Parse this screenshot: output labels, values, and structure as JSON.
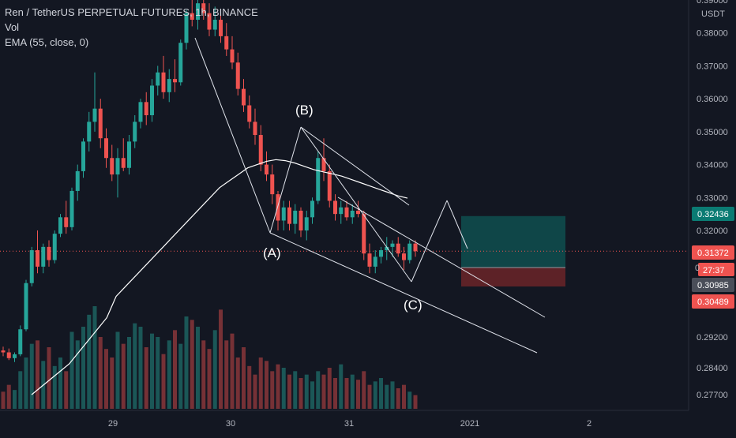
{
  "header": {
    "symbol_line": "Ren / TetherUS PERPETUAL FUTURES, 1h, BINANCE",
    "vol_label": "Vol",
    "ema_label": "EMA (55, close, 0)"
  },
  "price_axis": {
    "currency": "USDT",
    "ticks": [
      "0.39000",
      "0.38000",
      "0.37000",
      "0.36000",
      "0.35000",
      "0.34000",
      "0.33000",
      "0.32000",
      "0.29200",
      "0.28400",
      "0.27700"
    ],
    "tick_values": [
      0.39,
      0.38,
      0.37,
      0.36,
      0.35,
      0.34,
      0.33,
      0.32,
      0.292,
      0.284,
      0.277
    ]
  },
  "time_axis": {
    "labels": [
      "29",
      "30",
      "31",
      "2021",
      "2"
    ]
  },
  "badges": {
    "target": "0.32436",
    "current": "0.31372",
    "countdown": "27:37",
    "small_zero": "0",
    "entry": "0.30985",
    "stop": "0.30489"
  },
  "annotations": [
    "(A)",
    "(B)",
    "(C)"
  ],
  "colors": {
    "background": "#131722",
    "up": "#26a69a",
    "down": "#ef5350",
    "ema": "#ffffff",
    "target_zone": "#0f4f4f",
    "stop_zone": "#6b2528"
  },
  "chart_data": {
    "type": "candlestick",
    "title": "Ren / TetherUS PERPETUAL FUTURES, 1h, BINANCE",
    "ylabel": "USDT",
    "ylim": [
      0.27,
      0.39
    ],
    "series": [
      {
        "name": "Ren / TetherUS PERPETUAL FUTURES",
        "ohlc": [
          [
            0.2885,
            0.2895,
            0.287,
            0.288
          ],
          [
            0.288,
            0.289,
            0.286,
            0.2865
          ],
          [
            0.2865,
            0.288,
            0.2855,
            0.2875
          ],
          [
            0.2875,
            0.295,
            0.287,
            0.294
          ],
          [
            0.294,
            0.305,
            0.2935,
            0.304
          ],
          [
            0.304,
            0.315,
            0.303,
            0.314
          ],
          [
            0.314,
            0.32,
            0.307,
            0.309
          ],
          [
            0.309,
            0.316,
            0.307,
            0.315
          ],
          [
            0.315,
            0.317,
            0.309,
            0.311
          ],
          [
            0.311,
            0.32,
            0.31,
            0.319
          ],
          [
            0.319,
            0.325,
            0.318,
            0.324
          ],
          [
            0.324,
            0.329,
            0.319,
            0.321
          ],
          [
            0.321,
            0.333,
            0.32,
            0.332
          ],
          [
            0.332,
            0.34,
            0.329,
            0.338
          ],
          [
            0.338,
            0.348,
            0.336,
            0.347
          ],
          [
            0.347,
            0.356,
            0.344,
            0.353
          ],
          [
            0.353,
            0.368,
            0.35,
            0.357
          ],
          [
            0.357,
            0.36,
            0.345,
            0.348
          ],
          [
            0.348,
            0.351,
            0.339,
            0.342
          ],
          [
            0.342,
            0.346,
            0.335,
            0.337
          ],
          [
            0.337,
            0.345,
            0.33,
            0.342
          ],
          [
            0.342,
            0.348,
            0.338,
            0.339
          ],
          [
            0.339,
            0.349,
            0.337,
            0.347
          ],
          [
            0.347,
            0.355,
            0.345,
            0.353
          ],
          [
            0.353,
            0.36,
            0.351,
            0.359
          ],
          [
            0.359,
            0.362,
            0.352,
            0.355
          ],
          [
            0.355,
            0.366,
            0.353,
            0.364
          ],
          [
            0.364,
            0.37,
            0.361,
            0.368
          ],
          [
            0.368,
            0.373,
            0.36,
            0.362
          ],
          [
            0.362,
            0.369,
            0.359,
            0.366
          ],
          [
            0.366,
            0.372,
            0.362,
            0.365
          ],
          [
            0.365,
            0.378,
            0.364,
            0.377
          ],
          [
            0.377,
            0.387,
            0.375,
            0.386
          ],
          [
            0.386,
            0.39,
            0.382,
            0.384
          ],
          [
            0.384,
            0.39,
            0.381,
            0.389
          ],
          [
            0.389,
            0.39,
            0.384,
            0.386
          ],
          [
            0.386,
            0.389,
            0.379,
            0.381
          ],
          [
            0.381,
            0.388,
            0.379,
            0.384
          ],
          [
            0.384,
            0.387,
            0.377,
            0.379
          ],
          [
            0.379,
            0.383,
            0.373,
            0.375
          ],
          [
            0.375,
            0.379,
            0.369,
            0.371
          ],
          [
            0.371,
            0.374,
            0.361,
            0.363
          ],
          [
            0.363,
            0.366,
            0.356,
            0.358
          ],
          [
            0.358,
            0.361,
            0.351,
            0.353
          ],
          [
            0.353,
            0.357,
            0.346,
            0.349
          ],
          [
            0.349,
            0.352,
            0.338,
            0.34
          ],
          [
            0.34,
            0.344,
            0.335,
            0.337
          ],
          [
            0.337,
            0.34,
            0.328,
            0.331
          ],
          [
            0.331,
            0.332,
            0.32,
            0.323
          ],
          [
            0.323,
            0.329,
            0.32,
            0.327
          ],
          [
            0.327,
            0.329,
            0.32,
            0.322
          ],
          [
            0.322,
            0.328,
            0.319,
            0.326
          ],
          [
            0.326,
            0.327,
            0.318,
            0.32
          ],
          [
            0.32,
            0.326,
            0.317,
            0.324
          ],
          [
            0.324,
            0.33,
            0.322,
            0.329
          ],
          [
            0.329,
            0.344,
            0.328,
            0.342
          ],
          [
            0.342,
            0.348,
            0.335,
            0.338
          ],
          [
            0.338,
            0.34,
            0.327,
            0.329
          ],
          [
            0.329,
            0.331,
            0.323,
            0.325
          ],
          [
            0.325,
            0.329,
            0.322,
            0.327
          ],
          [
            0.327,
            0.329,
            0.323,
            0.324
          ],
          [
            0.324,
            0.328,
            0.322,
            0.326
          ],
          [
            0.326,
            0.329,
            0.324,
            0.325
          ],
          [
            0.325,
            0.326,
            0.311,
            0.313
          ],
          [
            0.313,
            0.316,
            0.307,
            0.309
          ],
          [
            0.309,
            0.314,
            0.307,
            0.312
          ],
          [
            0.312,
            0.315,
            0.31,
            0.314
          ],
          [
            0.314,
            0.318,
            0.311,
            0.315
          ],
          [
            0.315,
            0.317,
            0.312,
            0.316
          ],
          [
            0.316,
            0.318,
            0.312,
            0.313
          ],
          [
            0.313,
            0.315,
            0.308,
            0.311
          ],
          [
            0.311,
            0.317,
            0.31,
            0.316
          ],
          [
            0.316,
            0.317,
            0.312,
            0.3137
          ]
        ]
      },
      {
        "name": "Vol",
        "values": [
          10,
          14,
          11,
          22,
          30,
          38,
          40,
          28,
          36,
          25,
          30,
          22,
          45,
          40,
          48,
          55,
          60,
          42,
          35,
          30,
          45,
          38,
          42,
          50,
          48,
          36,
          44,
          42,
          32,
          40,
          46,
          38,
          54,
          52,
          48,
          40,
          35,
          46,
          58,
          40,
          44,
          30,
          36,
          25,
          20,
          30,
          28,
          22,
          26,
          24,
          20,
          22,
          18,
          20,
          16,
          22,
          20,
          24,
          18,
          26,
          18,
          20,
          17,
          22,
          14,
          16,
          18,
          14,
          16,
          12,
          14,
          10,
          8
        ]
      },
      {
        "name": "EMA (55, close, 0)",
        "values": [
          0.277,
          0.279,
          0.281,
          0.283,
          0.285,
          0.288,
          0.291,
          0.294,
          0.297,
          0.3,
          0.303,
          0.306,
          0.309,
          0.312,
          0.315,
          0.318,
          0.321,
          0.324,
          0.327,
          0.33,
          0.333,
          0.335,
          0.337,
          0.339,
          0.34,
          0.341,
          0.3415,
          0.3412,
          0.3405,
          0.3395,
          0.3385,
          0.3378,
          0.3372,
          0.3365,
          0.3355,
          0.3345,
          0.3335,
          0.3325,
          0.3315,
          0.3305,
          0.3298
        ]
      }
    ],
    "annotations": [
      {
        "label": "(A)",
        "price": 0.32
      },
      {
        "label": "(B)",
        "price": 0.35
      },
      {
        "label": "(C)",
        "price": 0.311
      }
    ],
    "position": {
      "target": 0.32436,
      "entry": 0.30985,
      "stop": 0.30489,
      "current": 0.31372
    },
    "x_labels": [
      "29",
      "30",
      "31",
      "2021",
      "2"
    ]
  }
}
